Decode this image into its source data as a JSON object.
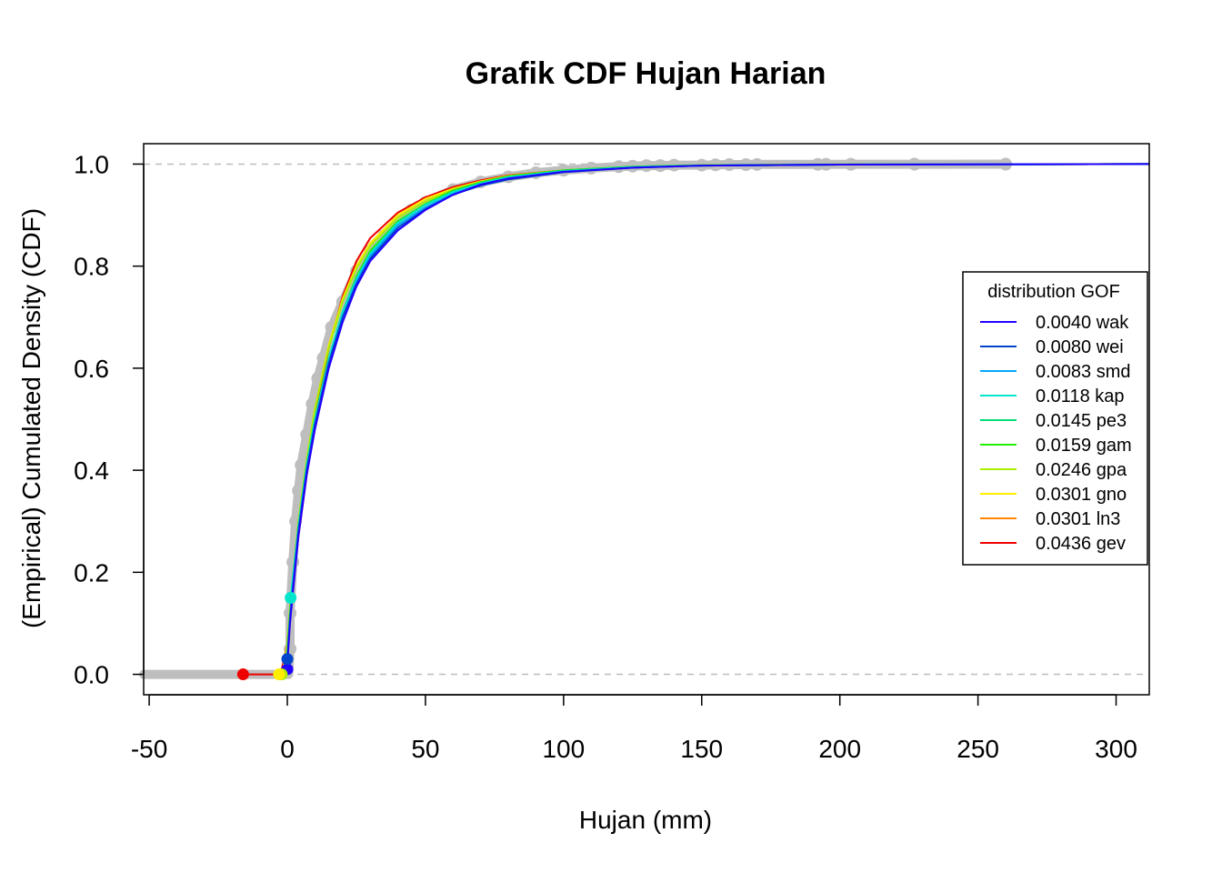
{
  "chart_data": {
    "type": "line",
    "title": "Grafik CDF Hujan Harian",
    "xlabel": "Hujan (mm)",
    "ylabel": "(Empirical) Cumulated Density (CDF)",
    "xlim": [
      -52,
      312
    ],
    "ylim": [
      -0.04,
      1.04
    ],
    "x_ticks": [
      -50,
      0,
      50,
      100,
      150,
      200,
      250,
      300
    ],
    "y_ticks": [
      0.0,
      0.2,
      0.4,
      0.6,
      0.8,
      1.0
    ],
    "x_tick_labels": [
      "-50",
      "0",
      "50",
      "100",
      "150",
      "200",
      "250",
      "300"
    ],
    "y_tick_labels": [
      "0.0",
      "0.2",
      "0.4",
      "0.6",
      "0.8",
      "1.0"
    ],
    "reference_lines": [
      0,
      1
    ],
    "reference_line_color": "#bebebe",
    "empirical_color": "#bebebe",
    "legend": {
      "title": "distribution GOF",
      "placement": "right",
      "entries": [
        {
          "label": "0.0040 wak",
          "color": "#2200ff"
        },
        {
          "label": "0.0080 wei",
          "color": "#0044cc"
        },
        {
          "label": "0.0083 smd",
          "color": "#00aaff"
        },
        {
          "label": "0.0118 kap",
          "color": "#00e5cc"
        },
        {
          "label": "0.0145 pe3",
          "color": "#00dd77"
        },
        {
          "label": "0.0159 gam",
          "color": "#22ee00"
        },
        {
          "label": "0.0246 gpa",
          "color": "#aaee00"
        },
        {
          "label": "0.0301 gno",
          "color": "#ffee00"
        },
        {
          "label": "0.0301 ln3",
          "color": "#ff8800"
        },
        {
          "label": "0.0436 gev",
          "color": "#ee0000"
        }
      ]
    },
    "empirical_points": [
      [
        1,
        0.05
      ],
      [
        1,
        0.12
      ],
      [
        2,
        0.22
      ],
      [
        3,
        0.3
      ],
      [
        4,
        0.36
      ],
      [
        5,
        0.41
      ],
      [
        7,
        0.47
      ],
      [
        9,
        0.53
      ],
      [
        11,
        0.58
      ],
      [
        13,
        0.62
      ],
      [
        16,
        0.68
      ],
      [
        20,
        0.73
      ],
      [
        25,
        0.79
      ],
      [
        30,
        0.83
      ],
      [
        35,
        0.86
      ],
      [
        40,
        0.89
      ],
      [
        45,
        0.91
      ],
      [
        50,
        0.925
      ],
      [
        60,
        0.95
      ],
      [
        70,
        0.965
      ],
      [
        80,
        0.975
      ],
      [
        90,
        0.983
      ],
      [
        100,
        0.988
      ],
      [
        110,
        0.992
      ],
      [
        120,
        0.995
      ],
      [
        125,
        0.996
      ],
      [
        130,
        0.997
      ],
      [
        135,
        0.997
      ],
      [
        140,
        0.998
      ],
      [
        150,
        0.998
      ],
      [
        155,
        0.9985
      ],
      [
        160,
        0.999
      ],
      [
        166,
        0.999
      ],
      [
        170,
        0.9993
      ],
      [
        192,
        0.9995
      ],
      [
        195,
        0.9996
      ],
      [
        204,
        0.9997
      ],
      [
        227,
        0.9998
      ],
      [
        260,
        0.9999
      ]
    ],
    "series": [
      {
        "name": "0.0040 wak",
        "color": "#2200ff",
        "points": [
          [
            -0.5,
            0
          ],
          [
            0,
            0.02
          ],
          [
            1,
            0.1
          ],
          [
            2,
            0.16
          ],
          [
            4,
            0.27
          ],
          [
            7,
            0.39
          ],
          [
            10,
            0.48
          ],
          [
            15,
            0.6
          ],
          [
            20,
            0.69
          ],
          [
            25,
            0.76
          ],
          [
            30,
            0.81
          ],
          [
            40,
            0.87
          ],
          [
            50,
            0.91
          ],
          [
            60,
            0.94
          ],
          [
            70,
            0.96
          ],
          [
            80,
            0.972
          ],
          [
            100,
            0.985
          ],
          [
            125,
            0.993
          ],
          [
            150,
            0.997
          ],
          [
            200,
            0.999
          ],
          [
            312,
            1.0
          ]
        ]
      },
      {
        "name": "0.0080 wei",
        "color": "#0044cc",
        "points": [
          [
            -0.5,
            0
          ],
          [
            0,
            0.03
          ],
          [
            1,
            0.11
          ],
          [
            2,
            0.17
          ],
          [
            4,
            0.28
          ],
          [
            7,
            0.4
          ],
          [
            10,
            0.49
          ],
          [
            15,
            0.61
          ],
          [
            20,
            0.7
          ],
          [
            25,
            0.765
          ],
          [
            30,
            0.815
          ],
          [
            40,
            0.875
          ],
          [
            50,
            0.912
          ],
          [
            60,
            0.94
          ],
          [
            70,
            0.958
          ],
          [
            80,
            0.97
          ],
          [
            100,
            0.984
          ],
          [
            125,
            0.993
          ],
          [
            150,
            0.997
          ],
          [
            200,
            0.999
          ],
          [
            312,
            1.0
          ]
        ]
      },
      {
        "name": "0.0083 smd",
        "color": "#00aaff",
        "points": [
          [
            -0.5,
            0
          ],
          [
            0,
            0.03
          ],
          [
            1,
            0.11
          ],
          [
            2,
            0.17
          ],
          [
            4,
            0.28
          ],
          [
            7,
            0.4
          ],
          [
            10,
            0.49
          ],
          [
            15,
            0.61
          ],
          [
            20,
            0.7
          ],
          [
            25,
            0.77
          ],
          [
            30,
            0.82
          ],
          [
            40,
            0.88
          ],
          [
            50,
            0.915
          ],
          [
            60,
            0.942
          ],
          [
            70,
            0.96
          ],
          [
            80,
            0.972
          ],
          [
            100,
            0.985
          ],
          [
            125,
            0.993
          ],
          [
            150,
            0.997
          ],
          [
            200,
            0.999
          ],
          [
            312,
            1.0
          ]
        ]
      },
      {
        "name": "0.0118 kap",
        "color": "#00e5cc",
        "points": [
          [
            1.2,
            0.15
          ],
          [
            2,
            0.19
          ],
          [
            4,
            0.29
          ],
          [
            7,
            0.41
          ],
          [
            10,
            0.5
          ],
          [
            15,
            0.62
          ],
          [
            20,
            0.71
          ],
          [
            25,
            0.775
          ],
          [
            30,
            0.825
          ],
          [
            40,
            0.885
          ],
          [
            50,
            0.92
          ],
          [
            60,
            0.945
          ],
          [
            70,
            0.962
          ],
          [
            80,
            0.974
          ],
          [
            100,
            0.986
          ],
          [
            125,
            0.994
          ],
          [
            150,
            0.997
          ],
          [
            200,
            0.999
          ],
          [
            312,
            1.0
          ]
        ]
      },
      {
        "name": "0.0145 pe3",
        "color": "#00dd77",
        "points": [
          [
            -0.5,
            0
          ],
          [
            0,
            0.04
          ],
          [
            1,
            0.12
          ],
          [
            2,
            0.18
          ],
          [
            4,
            0.29
          ],
          [
            7,
            0.41
          ],
          [
            10,
            0.5
          ],
          [
            15,
            0.62
          ],
          [
            20,
            0.71
          ],
          [
            25,
            0.775
          ],
          [
            30,
            0.825
          ],
          [
            40,
            0.885
          ],
          [
            50,
            0.92
          ],
          [
            60,
            0.946
          ],
          [
            70,
            0.963
          ],
          [
            80,
            0.975
          ],
          [
            100,
            0.987
          ],
          [
            125,
            0.994
          ],
          [
            150,
            0.997
          ],
          [
            200,
            0.999
          ],
          [
            312,
            1.0
          ]
        ]
      },
      {
        "name": "0.0159 gam",
        "color": "#22ee00",
        "points": [
          [
            -0.5,
            0
          ],
          [
            0,
            0.04
          ],
          [
            1,
            0.12
          ],
          [
            2,
            0.18
          ],
          [
            4,
            0.29
          ],
          [
            7,
            0.41
          ],
          [
            10,
            0.5
          ],
          [
            15,
            0.62
          ],
          [
            20,
            0.71
          ],
          [
            25,
            0.78
          ],
          [
            30,
            0.83
          ],
          [
            40,
            0.888
          ],
          [
            50,
            0.922
          ],
          [
            60,
            0.948
          ],
          [
            70,
            0.964
          ],
          [
            80,
            0.976
          ],
          [
            100,
            0.988
          ],
          [
            125,
            0.995
          ],
          [
            150,
            0.998
          ],
          [
            200,
            0.9995
          ],
          [
            312,
            1.0
          ]
        ]
      },
      {
        "name": "0.0246 gpa",
        "color": "#aaee00",
        "points": [
          [
            -2,
            0
          ],
          [
            -1,
            0.02
          ],
          [
            0,
            0.06
          ],
          [
            1,
            0.13
          ],
          [
            2,
            0.19
          ],
          [
            4,
            0.3
          ],
          [
            7,
            0.42
          ],
          [
            10,
            0.52
          ],
          [
            15,
            0.64
          ],
          [
            20,
            0.73
          ],
          [
            25,
            0.795
          ],
          [
            30,
            0.84
          ],
          [
            40,
            0.895
          ],
          [
            50,
            0.927
          ],
          [
            60,
            0.95
          ],
          [
            70,
            0.965
          ],
          [
            80,
            0.976
          ],
          [
            100,
            0.987
          ],
          [
            125,
            0.994
          ],
          [
            150,
            0.997
          ],
          [
            200,
            0.999
          ],
          [
            312,
            1.0
          ]
        ]
      },
      {
        "name": "0.0301 gno",
        "color": "#ffee00",
        "points": [
          [
            -3,
            0
          ],
          [
            -1.5,
            0.01
          ],
          [
            0,
            0.06
          ],
          [
            1,
            0.13
          ],
          [
            2,
            0.19
          ],
          [
            4,
            0.3
          ],
          [
            7,
            0.42
          ],
          [
            10,
            0.52
          ],
          [
            15,
            0.645
          ],
          [
            20,
            0.735
          ],
          [
            25,
            0.8
          ],
          [
            30,
            0.845
          ],
          [
            40,
            0.9
          ],
          [
            50,
            0.932
          ],
          [
            60,
            0.952
          ],
          [
            70,
            0.966
          ],
          [
            80,
            0.977
          ],
          [
            100,
            0.988
          ],
          [
            125,
            0.994
          ],
          [
            150,
            0.997
          ],
          [
            200,
            0.999
          ],
          [
            312,
            1.0
          ]
        ]
      },
      {
        "name": "0.0301 ln3",
        "color": "#ff8800",
        "points": [
          [
            -3,
            0
          ],
          [
            -1.5,
            0.01
          ],
          [
            0,
            0.06
          ],
          [
            1,
            0.13
          ],
          [
            2,
            0.19
          ],
          [
            4,
            0.3
          ],
          [
            7,
            0.42
          ],
          [
            10,
            0.52
          ],
          [
            15,
            0.645
          ],
          [
            20,
            0.735
          ],
          [
            25,
            0.8
          ],
          [
            30,
            0.845
          ],
          [
            40,
            0.9
          ],
          [
            50,
            0.932
          ],
          [
            60,
            0.952
          ],
          [
            70,
            0.966
          ],
          [
            80,
            0.977
          ],
          [
            100,
            0.988
          ],
          [
            125,
            0.994
          ],
          [
            150,
            0.997
          ],
          [
            200,
            0.999
          ],
          [
            312,
            1.0
          ]
        ]
      },
      {
        "name": "0.0436 gev",
        "color": "#ee0000",
        "points": [
          [
            -16,
            0
          ],
          [
            -4,
            0
          ],
          [
            -2,
            0.01
          ],
          [
            0,
            0.06
          ],
          [
            1,
            0.12
          ],
          [
            2,
            0.17
          ],
          [
            4,
            0.27
          ],
          [
            7,
            0.39
          ],
          [
            10,
            0.5
          ],
          [
            15,
            0.64
          ],
          [
            20,
            0.74
          ],
          [
            25,
            0.81
          ],
          [
            30,
            0.855
          ],
          [
            40,
            0.905
          ],
          [
            50,
            0.935
          ],
          [
            60,
            0.955
          ],
          [
            70,
            0.968
          ],
          [
            80,
            0.978
          ],
          [
            100,
            0.988
          ],
          [
            125,
            0.994
          ],
          [
            150,
            0.997
          ],
          [
            200,
            0.999
          ],
          [
            312,
            1.0
          ]
        ]
      }
    ],
    "support_points": [
      {
        "name": "wak",
        "x": 0,
        "y": 0.01,
        "color": "#2200ff"
      },
      {
        "name": "wei",
        "x": 0,
        "y": 0.03,
        "color": "#0044cc"
      },
      {
        "name": "kap",
        "x": 1.2,
        "y": 0.15,
        "color": "#00e5cc"
      },
      {
        "name": "gpa",
        "x": -2,
        "y": 0.0,
        "color": "#aaee00"
      },
      {
        "name": "gno",
        "x": -3,
        "y": 0.0,
        "color": "#ffee00"
      },
      {
        "name": "gev",
        "x": -16,
        "y": 0.0,
        "color": "#ee0000"
      }
    ]
  }
}
